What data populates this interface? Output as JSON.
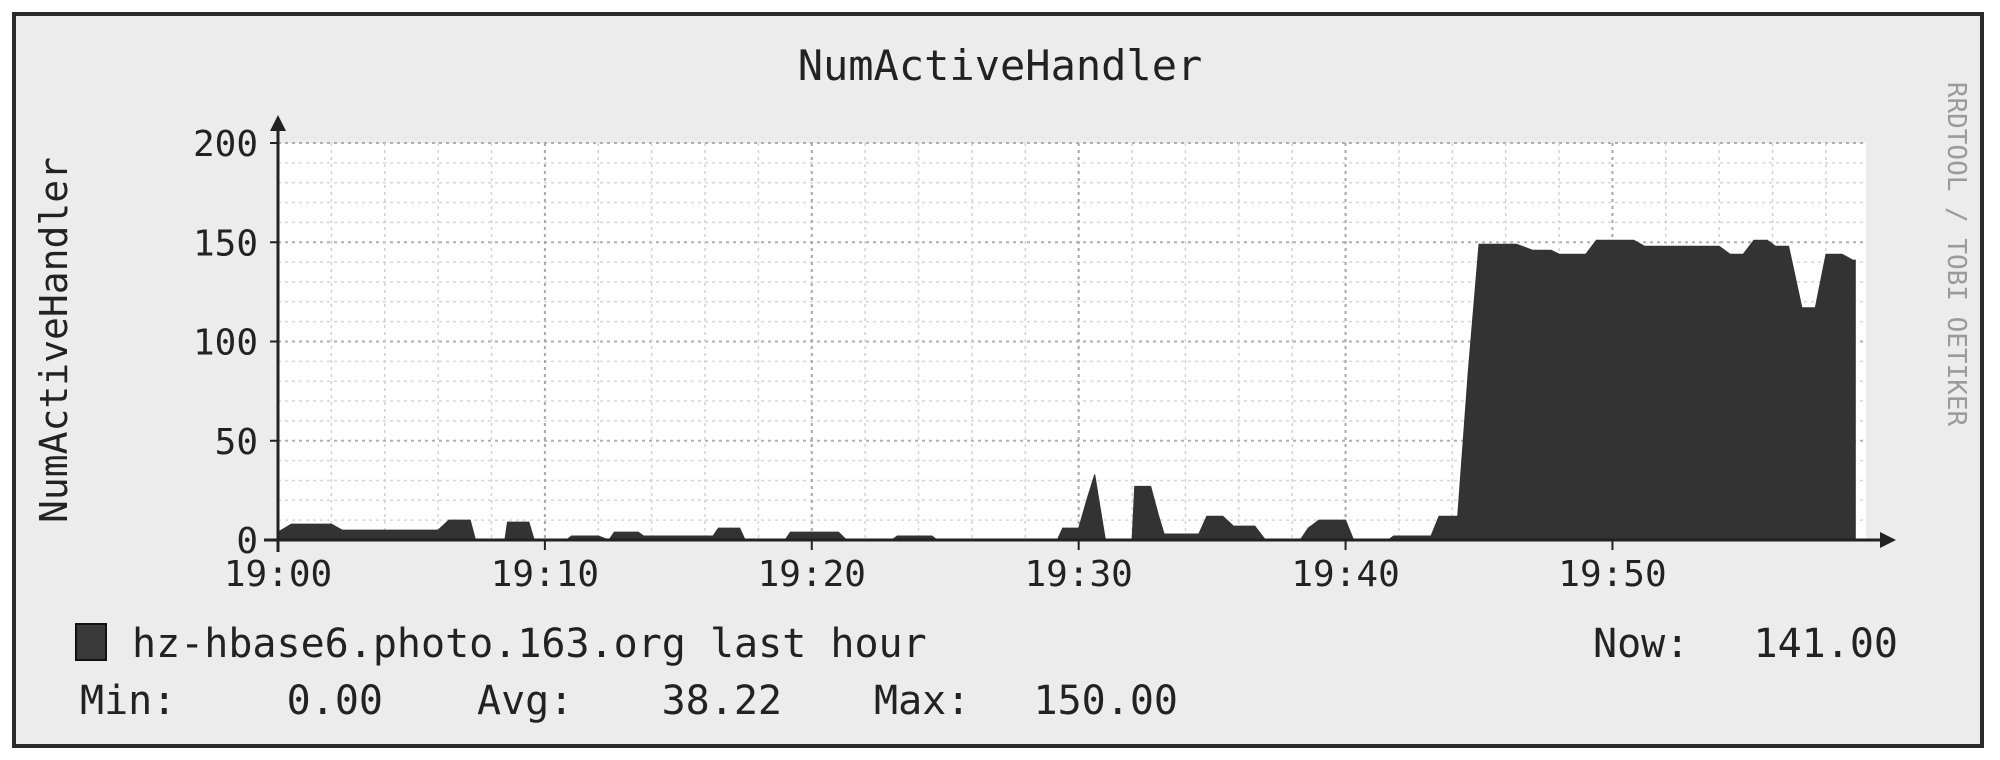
{
  "chart_data": {
    "type": "area",
    "title": "NumActiveHandler",
    "ylabel": "NumActiveHandler",
    "xlabel": "",
    "watermark": "RRDTOOL / TOBI OETIKER",
    "ylim": [
      0,
      200
    ],
    "y_ticks": [
      0,
      50,
      100,
      150,
      200
    ],
    "y_tick_labels": [
      "0",
      "50",
      "100",
      "150",
      "200"
    ],
    "x_range_minutes": [
      0,
      59.5
    ],
    "x_ticks_minutes": [
      0,
      10,
      20,
      30,
      40,
      50
    ],
    "x_tick_labels": [
      "19:00",
      "19:10",
      "19:20",
      "19:30",
      "19:40",
      "19:50"
    ],
    "grid": true,
    "area_color": "#333333",
    "series": [
      {
        "name": "hz-hbase6.photo.163.org last hour",
        "points": [
          [
            0,
            4
          ],
          [
            0.5,
            8
          ],
          [
            2,
            8
          ],
          [
            2.4,
            5
          ],
          [
            6,
            5
          ],
          [
            6.4,
            10
          ],
          [
            7.2,
            10
          ],
          [
            7.4,
            0
          ],
          [
            8.5,
            0
          ],
          [
            8.6,
            9
          ],
          [
            9.4,
            9
          ],
          [
            9.6,
            0
          ],
          [
            10.8,
            0
          ],
          [
            11,
            2
          ],
          [
            12,
            2
          ],
          [
            12.4,
            0
          ],
          [
            12.6,
            4
          ],
          [
            13.5,
            4
          ],
          [
            13.7,
            2
          ],
          [
            16.3,
            2
          ],
          [
            16.5,
            6
          ],
          [
            17.3,
            6
          ],
          [
            17.5,
            0
          ],
          [
            19,
            0
          ],
          [
            19.2,
            4
          ],
          [
            21,
            4
          ],
          [
            21.3,
            0
          ],
          [
            23,
            0
          ],
          [
            23.2,
            2
          ],
          [
            24.5,
            2
          ],
          [
            24.7,
            0
          ],
          [
            29.2,
            0
          ],
          [
            29.4,
            6
          ],
          [
            30,
            6
          ],
          [
            30.3,
            20
          ],
          [
            30.6,
            33
          ],
          [
            31,
            0
          ],
          [
            32,
            0
          ],
          [
            32.1,
            27
          ],
          [
            32.7,
            27
          ],
          [
            33,
            12
          ],
          [
            33.2,
            3
          ],
          [
            34.5,
            3
          ],
          [
            34.8,
            12
          ],
          [
            35.4,
            12
          ],
          [
            35.8,
            7
          ],
          [
            36.6,
            7
          ],
          [
            37,
            0
          ],
          [
            38.3,
            0
          ],
          [
            38.6,
            6
          ],
          [
            39,
            10
          ],
          [
            40,
            10
          ],
          [
            40.3,
            0
          ],
          [
            41.6,
            0
          ],
          [
            41.8,
            2
          ],
          [
            43.2,
            2
          ],
          [
            43.5,
            12
          ],
          [
            44.2,
            12
          ],
          [
            44.6,
            85
          ],
          [
            45,
            149
          ],
          [
            46.4,
            149
          ],
          [
            47,
            146
          ],
          [
            47.7,
            146
          ],
          [
            48,
            144
          ],
          [
            49,
            144
          ],
          [
            49.4,
            151
          ],
          [
            50.8,
            151
          ],
          [
            51.2,
            148
          ],
          [
            54,
            148
          ],
          [
            54.4,
            144
          ],
          [
            54.9,
            144
          ],
          [
            55.3,
            151
          ],
          [
            55.8,
            151
          ],
          [
            56.1,
            148
          ],
          [
            56.6,
            148
          ],
          [
            57.1,
            117
          ],
          [
            57.6,
            117
          ],
          [
            58,
            144
          ],
          [
            58.6,
            144
          ],
          [
            59,
            141
          ],
          [
            59.1,
            141
          ],
          [
            59.1,
            0
          ]
        ]
      }
    ],
    "legend": {
      "swatch_color": "#3a3a3a",
      "label": "hz-hbase6.photo.163.org last hour",
      "now_label": "Now:",
      "now_value": "141.00"
    },
    "stats": {
      "min_label": "Min:",
      "min_value": "0.00",
      "avg_label": "Avg:",
      "avg_value": "38.22",
      "max_label": "Max:",
      "max_value": "150.00"
    }
  }
}
